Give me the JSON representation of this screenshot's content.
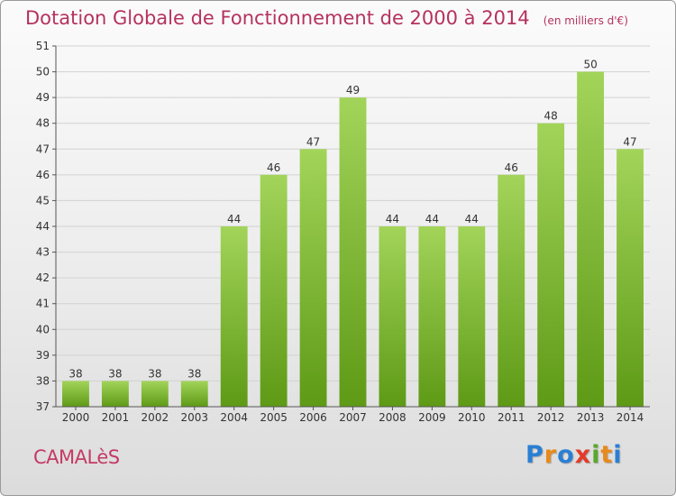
{
  "chart_data": {
    "type": "bar",
    "title": "Dotation Globale de Fonctionnement de 2000 à 2014",
    "subtitle": "(en milliers d'€)",
    "categories": [
      "2000",
      "2001",
      "2002",
      "2003",
      "2004",
      "2005",
      "2006",
      "2007",
      "2008",
      "2009",
      "2010",
      "2011",
      "2012",
      "2013",
      "2014"
    ],
    "values": [
      38,
      38,
      38,
      38,
      44,
      46,
      47,
      49,
      44,
      44,
      44,
      46,
      48,
      50,
      47
    ],
    "ylim": [
      37,
      51
    ],
    "yticks": [
      37,
      38,
      39,
      40,
      41,
      42,
      43,
      44,
      45,
      46,
      47,
      48,
      49,
      50,
      51
    ],
    "xlabel": "",
    "ylabel": "",
    "grid": true,
    "bar_color": "#7cb82e",
    "bar_color_light": "#a2d45a",
    "bar_color_dark": "#5e9a16"
  },
  "footer": {
    "commune": "CAMALèS",
    "brand": [
      "P",
      "r",
      "o",
      "x",
      "i",
      "t",
      "i"
    ],
    "brand_colors": [
      "#2a7fd4",
      "#e88a1a",
      "#2a7fd4",
      "#e33b2a",
      "#5aa82a",
      "#e88a1a",
      "#2a7fd4"
    ]
  },
  "colors": {
    "title": "#b5325e",
    "commune": "#c43a66"
  }
}
